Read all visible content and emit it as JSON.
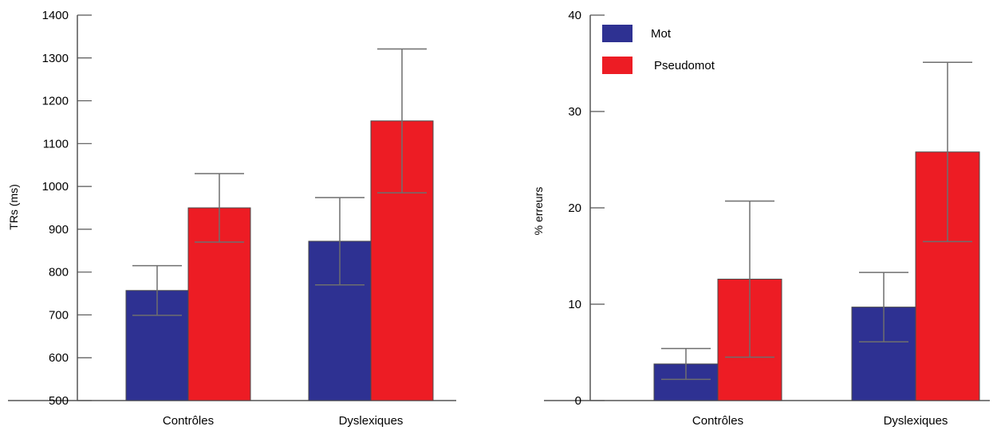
{
  "colors": {
    "Mot": "#2E3192",
    "Pseudomot": "#ED1C24",
    "axis": "#555555",
    "error_bar": "#6E6E6E"
  },
  "chart_data": [
    {
      "type": "bar",
      "categories": [
        "Contrôles",
        "Dyslexiques"
      ],
      "ylabel": "TRs (ms)",
      "ylim": [
        500,
        1400
      ],
      "yticks": [
        500,
        600,
        700,
        800,
        900,
        1000,
        1100,
        1200,
        1300,
        1400
      ],
      "series": [
        {
          "name": "Mot",
          "values": [
            757,
            872
          ],
          "error": [
            58,
            102
          ]
        },
        {
          "name": "Pseudomot",
          "values": [
            950,
            1153
          ],
          "error": [
            80,
            168
          ]
        }
      ],
      "grid": false
    },
    {
      "type": "bar",
      "categories": [
        "Contrôles",
        "Dyslexiques"
      ],
      "ylabel": "% erreurs",
      "ylim": [
        0,
        40
      ],
      "yticks": [
        0,
        10,
        20,
        30,
        40
      ],
      "series": [
        {
          "name": "Mot",
          "values": [
            3.8,
            9.7
          ],
          "error": [
            1.6,
            3.6
          ]
        },
        {
          "name": "Pseudomot",
          "values": [
            12.6,
            25.8
          ],
          "error": [
            8.1,
            9.3
          ]
        }
      ],
      "grid": false,
      "legend": {
        "position": "top-left",
        "entries": [
          "Mot",
          "Pseudomot"
        ]
      }
    }
  ]
}
